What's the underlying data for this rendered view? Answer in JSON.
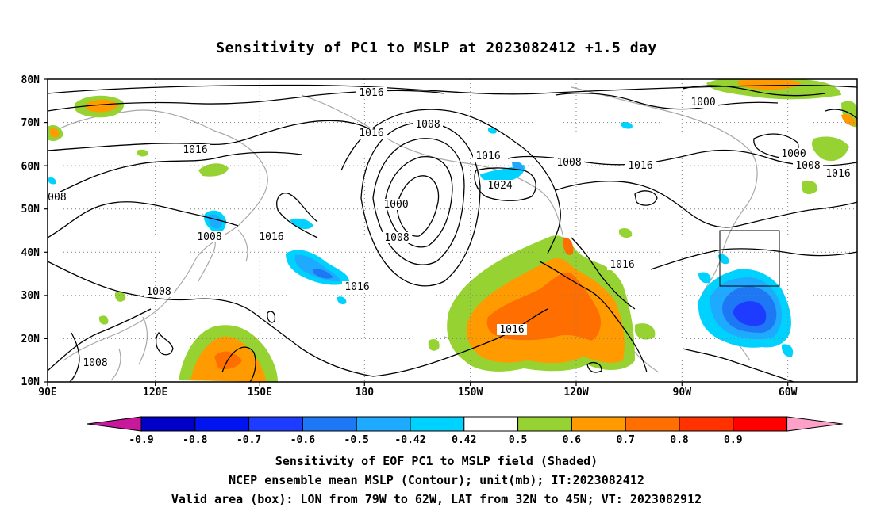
{
  "title": "Sensitivity of PC1 to MSLP at 2023082412 +1.5 day",
  "map": {
    "lat_labels": [
      "80N",
      "70N",
      "60N",
      "50N",
      "40N",
      "30N",
      "20N",
      "10N"
    ],
    "lon_labels": [
      "90E",
      "120E",
      "150E",
      "180",
      "150W",
      "120W",
      "90W",
      "60W"
    ],
    "contour_labels": [
      {
        "text": "1016"
      },
      {
        "text": "1008"
      },
      {
        "text": "1016"
      },
      {
        "text": "1000"
      },
      {
        "text": "1016"
      },
      {
        "text": "1000"
      },
      {
        "text": "1008"
      },
      {
        "text": "1016"
      },
      {
        "text": "1008"
      },
      {
        "text": "1016"
      },
      {
        "text": "1024"
      },
      {
        "text": "1000"
      },
      {
        "text": "1008"
      },
      {
        "text": "1016"
      },
      {
        "text": "1008"
      },
      {
        "text": "1016"
      },
      {
        "text": "1008"
      },
      {
        "text": "1016"
      },
      {
        "text": "1016"
      },
      {
        "text": "1008"
      },
      {
        "text": "1008"
      },
      {
        "text": "1016"
      },
      {
        "text": "1016"
      }
    ],
    "valid_box": {
      "lon_from": "79W",
      "lon_to": "62W",
      "lat_from": "32N",
      "lat_to": "45N"
    }
  },
  "colorbar": {
    "labels": [
      "-0.9",
      "-0.8",
      "-0.7",
      "-0.6",
      "-0.5",
      "-0.42",
      "0.42",
      "0.5",
      "0.6",
      "0.7",
      "0.8",
      "0.9"
    ],
    "colors": [
      "#c8189c",
      "#0000c8",
      "#0014f0",
      "#1e3cff",
      "#1e78f5",
      "#1eaaff",
      "#00d2ff",
      "#ffffff",
      "#96d232",
      "#ff9b00",
      "#ff6e00",
      "#ff3200",
      "#ff0000",
      "#ffa0c8"
    ]
  },
  "captions": {
    "line1": "Sensitivity of EOF PC1 to MSLP field (Shaded)",
    "line2": "NCEP ensemble mean MSLP (Contour); unit(mb); IT:2023082412",
    "line3": "Valid area (box): LON from 79W to 62W, LAT from 32N to 45N; VT: 2023082912"
  }
}
